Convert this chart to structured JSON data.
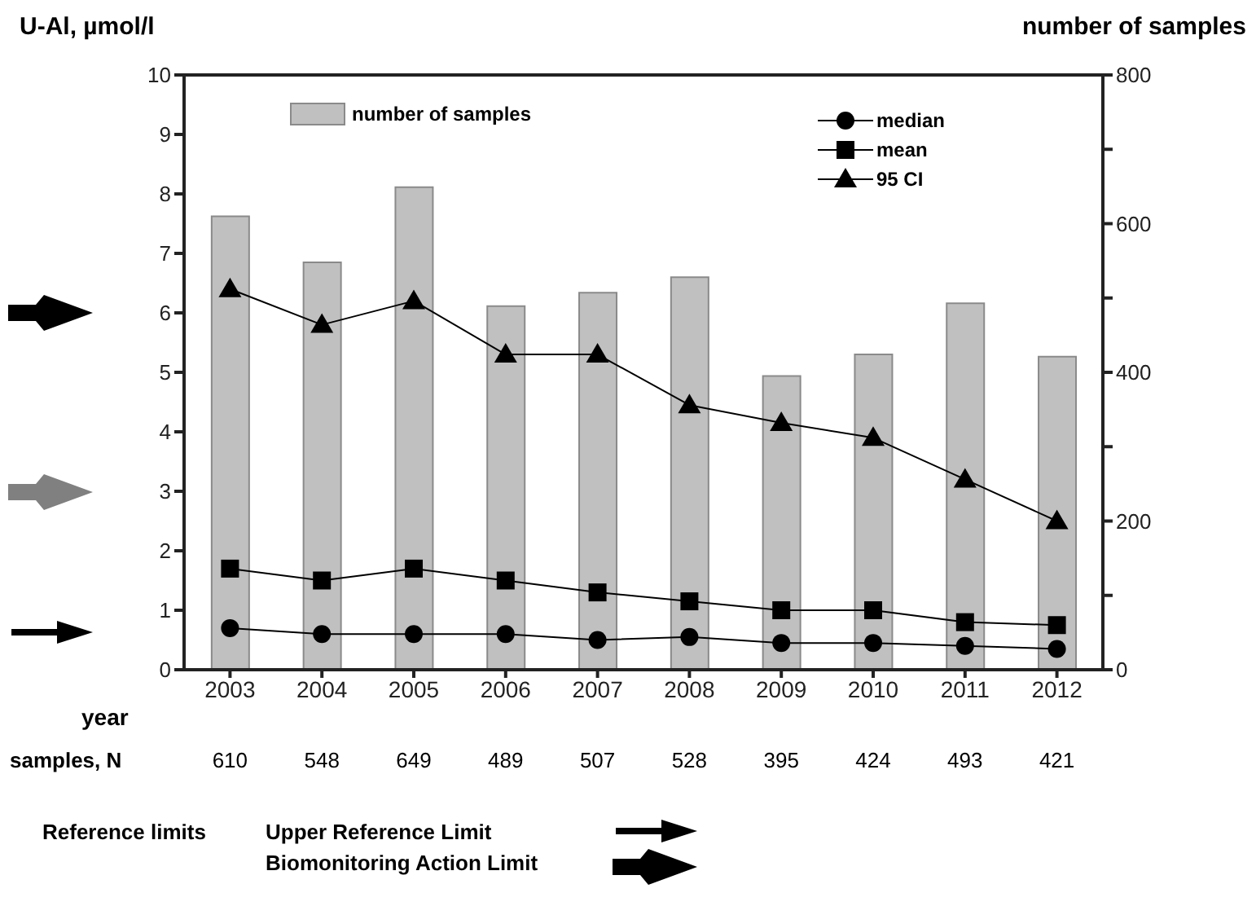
{
  "chart_data": {
    "type": "bar",
    "ylabel": "U-Al, µmol/l",
    "y2label": "number of samples",
    "xlabel": "year",
    "categories": [
      "2003",
      "2004",
      "2005",
      "2006",
      "2007",
      "2008",
      "2009",
      "2010",
      "2011",
      "2012"
    ],
    "series": [
      {
        "name": "number of samples",
        "axis": "y2",
        "color": "#c0c0c0",
        "values": [
          610,
          548,
          649,
          489,
          507,
          528,
          395,
          424,
          493,
          421
        ],
        "value_labels": [
          "610",
          "548",
          "649",
          "489",
          "507",
          "528",
          "395",
          "424",
          "493",
          "421"
        ]
      },
      {
        "name": "median",
        "type": "line",
        "marker": "circle",
        "color": "#000000",
        "values": [
          0.7,
          0.6,
          0.6,
          0.6,
          0.5,
          0.55,
          0.45,
          0.45,
          0.4,
          0.35
        ]
      },
      {
        "name": "mean",
        "type": "line",
        "marker": "square",
        "color": "#000000",
        "values": [
          1.7,
          1.5,
          1.7,
          1.5,
          1.3,
          1.15,
          1.0,
          1.0,
          0.8,
          0.75
        ]
      },
      {
        "name": "95 CI",
        "type": "line",
        "marker": "triangle",
        "color": "#000000",
        "values": [
          6.4,
          5.8,
          6.2,
          5.3,
          5.3,
          4.45,
          4.15,
          3.9,
          3.2,
          2.5
        ]
      }
    ],
    "ylim": [
      0,
      10
    ],
    "yticks": [
      0,
      1,
      2,
      3,
      4,
      5,
      6,
      7,
      8,
      9,
      10
    ],
    "y2lim": [
      0,
      800
    ],
    "y2ticks": [
      0,
      {
        "value": 100,
        "label": null
      },
      200,
      {
        "value": 300,
        "label": null
      },
      400,
      {
        "value": 500,
        "label": null
      },
      600,
      {
        "value": 700,
        "label": null
      },
      800
    ],
    "legend": "top",
    "annotations": [
      "samples, N",
      "Reference limits",
      "Upper Reference Limit",
      "Biomonitoring Action Limit"
    ]
  }
}
